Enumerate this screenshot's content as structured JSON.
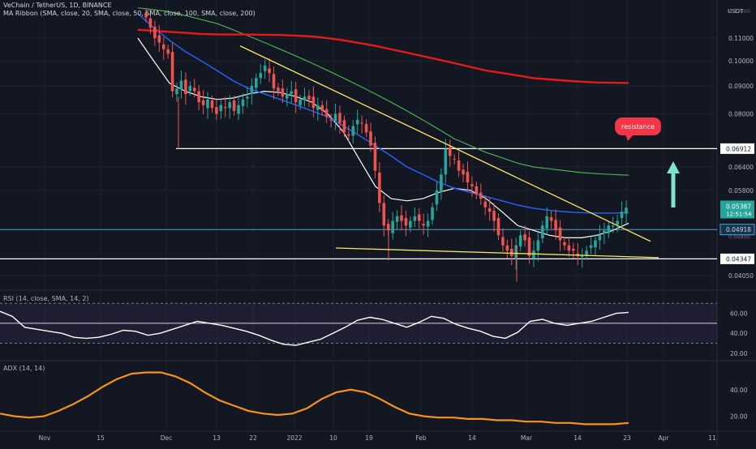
{
  "header": {
    "symbol_line": "VeChain / TetherUS, 1D, BINANCE",
    "ma_ribbon_line": "MA Ribbon (SMA, close, 20, SMA, close, 50, SMA, close, 100, SMA, close, 200)",
    "currency": "USDT"
  },
  "colors": {
    "background": "#131722",
    "grid": "#1e222d",
    "up": "#26a69a",
    "down": "#ef5350",
    "sma20": "#ffffff",
    "sma50": "#2962ff",
    "sma100": "#4caf50",
    "sma200": "#e51a1a",
    "trendline": "#f5e663",
    "resistance_line": "#ffffff",
    "support_line": "#4fa3d1",
    "rsi": "#ffffff",
    "adx": "#f7931a",
    "arrow": "#7fe3d0",
    "resistance_bubble": "#f23645"
  },
  "annotations": {
    "resistance_label": "resistance",
    "arrow_direction": "up"
  },
  "price_panel": {
    "axis_labels": [
      "0.11000",
      "0.10000",
      "0.09000",
      "0.08000",
      "0.06400",
      "0.05800",
      "0.04050"
    ],
    "partial_labels": [
      "0.12000",
      "0.04800",
      "0.04350"
    ],
    "badges": [
      {
        "text": "0.06912",
        "style": "white"
      },
      {
        "text": "0.04918",
        "style": "blue"
      },
      {
        "text": "0.04347",
        "style": "white"
      }
    ],
    "last_price": {
      "text": "0.05387",
      "countdown": "12:51:54"
    }
  },
  "rsi_panel": {
    "title": "RSI (14, close, SMA, 14, 2)",
    "axis_labels": [
      "60.00",
      "40.00",
      "20.00"
    ]
  },
  "adx_panel": {
    "title": "ADX (14, 14)",
    "axis_labels": [
      "40.00",
      "20.00"
    ]
  },
  "x_axis": {
    "labels": [
      "Nov",
      "15",
      "Dec",
      "13",
      "22",
      "2022",
      "10",
      "19",
      "Feb",
      "14",
      "Mar",
      "14",
      "23",
      "Apr",
      "11"
    ]
  },
  "chart_data": {
    "type": "candlestick",
    "title": "VeChain / TetherUS, 1D, BINANCE",
    "ylabel": "USDT",
    "ylim": [
      0.039,
      0.125
    ],
    "y_scale": "log",
    "x_ticks": [
      "Nov",
      "15",
      "Dec",
      "13",
      "22",
      "2022",
      "10",
      "19",
      "Feb",
      "14",
      "Mar",
      "14",
      "23",
      "Apr",
      "11"
    ],
    "date_range": [
      "2021-12-01",
      "2022-03-23"
    ],
    "candles_close": [
      0.12,
      0.115,
      0.11,
      0.108,
      0.105,
      0.103,
      0.088,
      0.089,
      0.092,
      0.087,
      0.09,
      0.088,
      0.084,
      0.083,
      0.085,
      0.082,
      0.08,
      0.083,
      0.082,
      0.084,
      0.081,
      0.083,
      0.085,
      0.086,
      0.09,
      0.093,
      0.095,
      0.098,
      0.095,
      0.089,
      0.088,
      0.086,
      0.087,
      0.088,
      0.084,
      0.085,
      0.086,
      0.085,
      0.082,
      0.083,
      0.081,
      0.079,
      0.078,
      0.08,
      0.077,
      0.074,
      0.073,
      0.076,
      0.078,
      0.077,
      0.074,
      0.07,
      0.063,
      0.055,
      0.05,
      0.049,
      0.051,
      0.052,
      0.051,
      0.05,
      0.051,
      0.052,
      0.051,
      0.05,
      0.051,
      0.054,
      0.058,
      0.062,
      0.069,
      0.067,
      0.066,
      0.063,
      0.062,
      0.06,
      0.059,
      0.057,
      0.056,
      0.054,
      0.053,
      0.051,
      0.048,
      0.046,
      0.045,
      0.044,
      0.046,
      0.048,
      0.047,
      0.044,
      0.045,
      0.047,
      0.05,
      0.052,
      0.051,
      0.049,
      0.047,
      0.046,
      0.045,
      0.045,
      0.044,
      0.044,
      0.045,
      0.046,
      0.047,
      0.048,
      0.049,
      0.05,
      0.05,
      0.051,
      0.053,
      0.0539
    ],
    "series": [
      {
        "name": "SMA 20",
        "values": [
          0.11,
          0.1,
          0.091,
          0.088,
          0.086,
          0.085,
          0.0855,
          0.087,
          0.088,
          0.0875,
          0.086,
          0.084,
          0.08,
          0.074,
          0.066,
          0.059,
          0.056,
          0.0555,
          0.056,
          0.0575,
          0.0585,
          0.058,
          0.056,
          0.053,
          0.05,
          0.049,
          0.048,
          0.0475,
          0.0475,
          0.048,
          0.049,
          0.0505
        ]
      },
      {
        "name": "SMA 50",
        "values": [
          0.122,
          0.115,
          0.109,
          0.104,
          0.1,
          0.096,
          0.092,
          0.089,
          0.087,
          0.085,
          0.083,
          0.081,
          0.079,
          0.076,
          0.073,
          0.07,
          0.067,
          0.064,
          0.062,
          0.06,
          0.0585,
          0.0575,
          0.0565,
          0.0555,
          0.0545,
          0.0538,
          0.0533,
          0.053,
          0.0528,
          0.0527,
          0.0527,
          0.0528
        ]
      },
      {
        "name": "SMA 100",
        "values": [
          0.125,
          0.124,
          0.123,
          0.121,
          0.119,
          0.117,
          0.114,
          0.111,
          0.108,
          0.105,
          0.102,
          0.099,
          0.096,
          0.093,
          0.09,
          0.087,
          0.084,
          0.081,
          0.078,
          0.075,
          0.072,
          0.07,
          0.068,
          0.0665,
          0.065,
          0.064,
          0.0635,
          0.063,
          0.0625,
          0.0622,
          0.062,
          0.0618
        ]
      },
      {
        "name": "SMA 200",
        "values": [
          0.114,
          0.1135,
          0.113,
          0.1125,
          0.112,
          0.1118,
          0.1117,
          0.1117,
          0.1116,
          0.1115,
          0.1112,
          0.1108,
          0.11,
          0.109,
          0.1078,
          0.1065,
          0.105,
          0.1035,
          0.102,
          0.1005,
          0.099,
          0.0975,
          0.096,
          0.095,
          0.094,
          0.093,
          0.0925,
          0.092,
          0.0916,
          0.0913,
          0.0912,
          0.0911
        ]
      }
    ],
    "horizontal_levels": [
      0.06912,
      0.04918,
      0.04347
    ],
    "rsi_values": [
      62,
      57,
      46,
      44,
      42,
      40,
      36,
      35,
      36,
      39,
      43,
      42,
      38,
      40,
      44,
      48,
      52,
      50,
      48,
      45,
      42,
      38,
      33,
      29,
      28,
      31,
      34,
      40,
      46,
      53,
      56,
      54,
      50,
      46,
      51,
      57,
      55,
      49,
      45,
      42,
      37,
      35,
      41,
      52,
      54,
      50,
      48,
      50,
      52,
      56,
      60,
      61
    ],
    "rsi_levels": [
      70,
      50,
      30
    ],
    "adx_values": [
      22,
      20,
      19,
      20,
      24,
      29,
      35,
      42,
      48,
      52,
      53,
      53,
      50,
      45,
      38,
      32,
      28,
      24,
      22,
      21,
      22,
      26,
      33,
      38,
      40,
      38,
      33,
      27,
      22,
      20,
      19,
      19,
      18,
      18,
      17,
      17,
      16,
      16,
      15,
      15,
      14,
      14,
      14,
      15
    ]
  }
}
